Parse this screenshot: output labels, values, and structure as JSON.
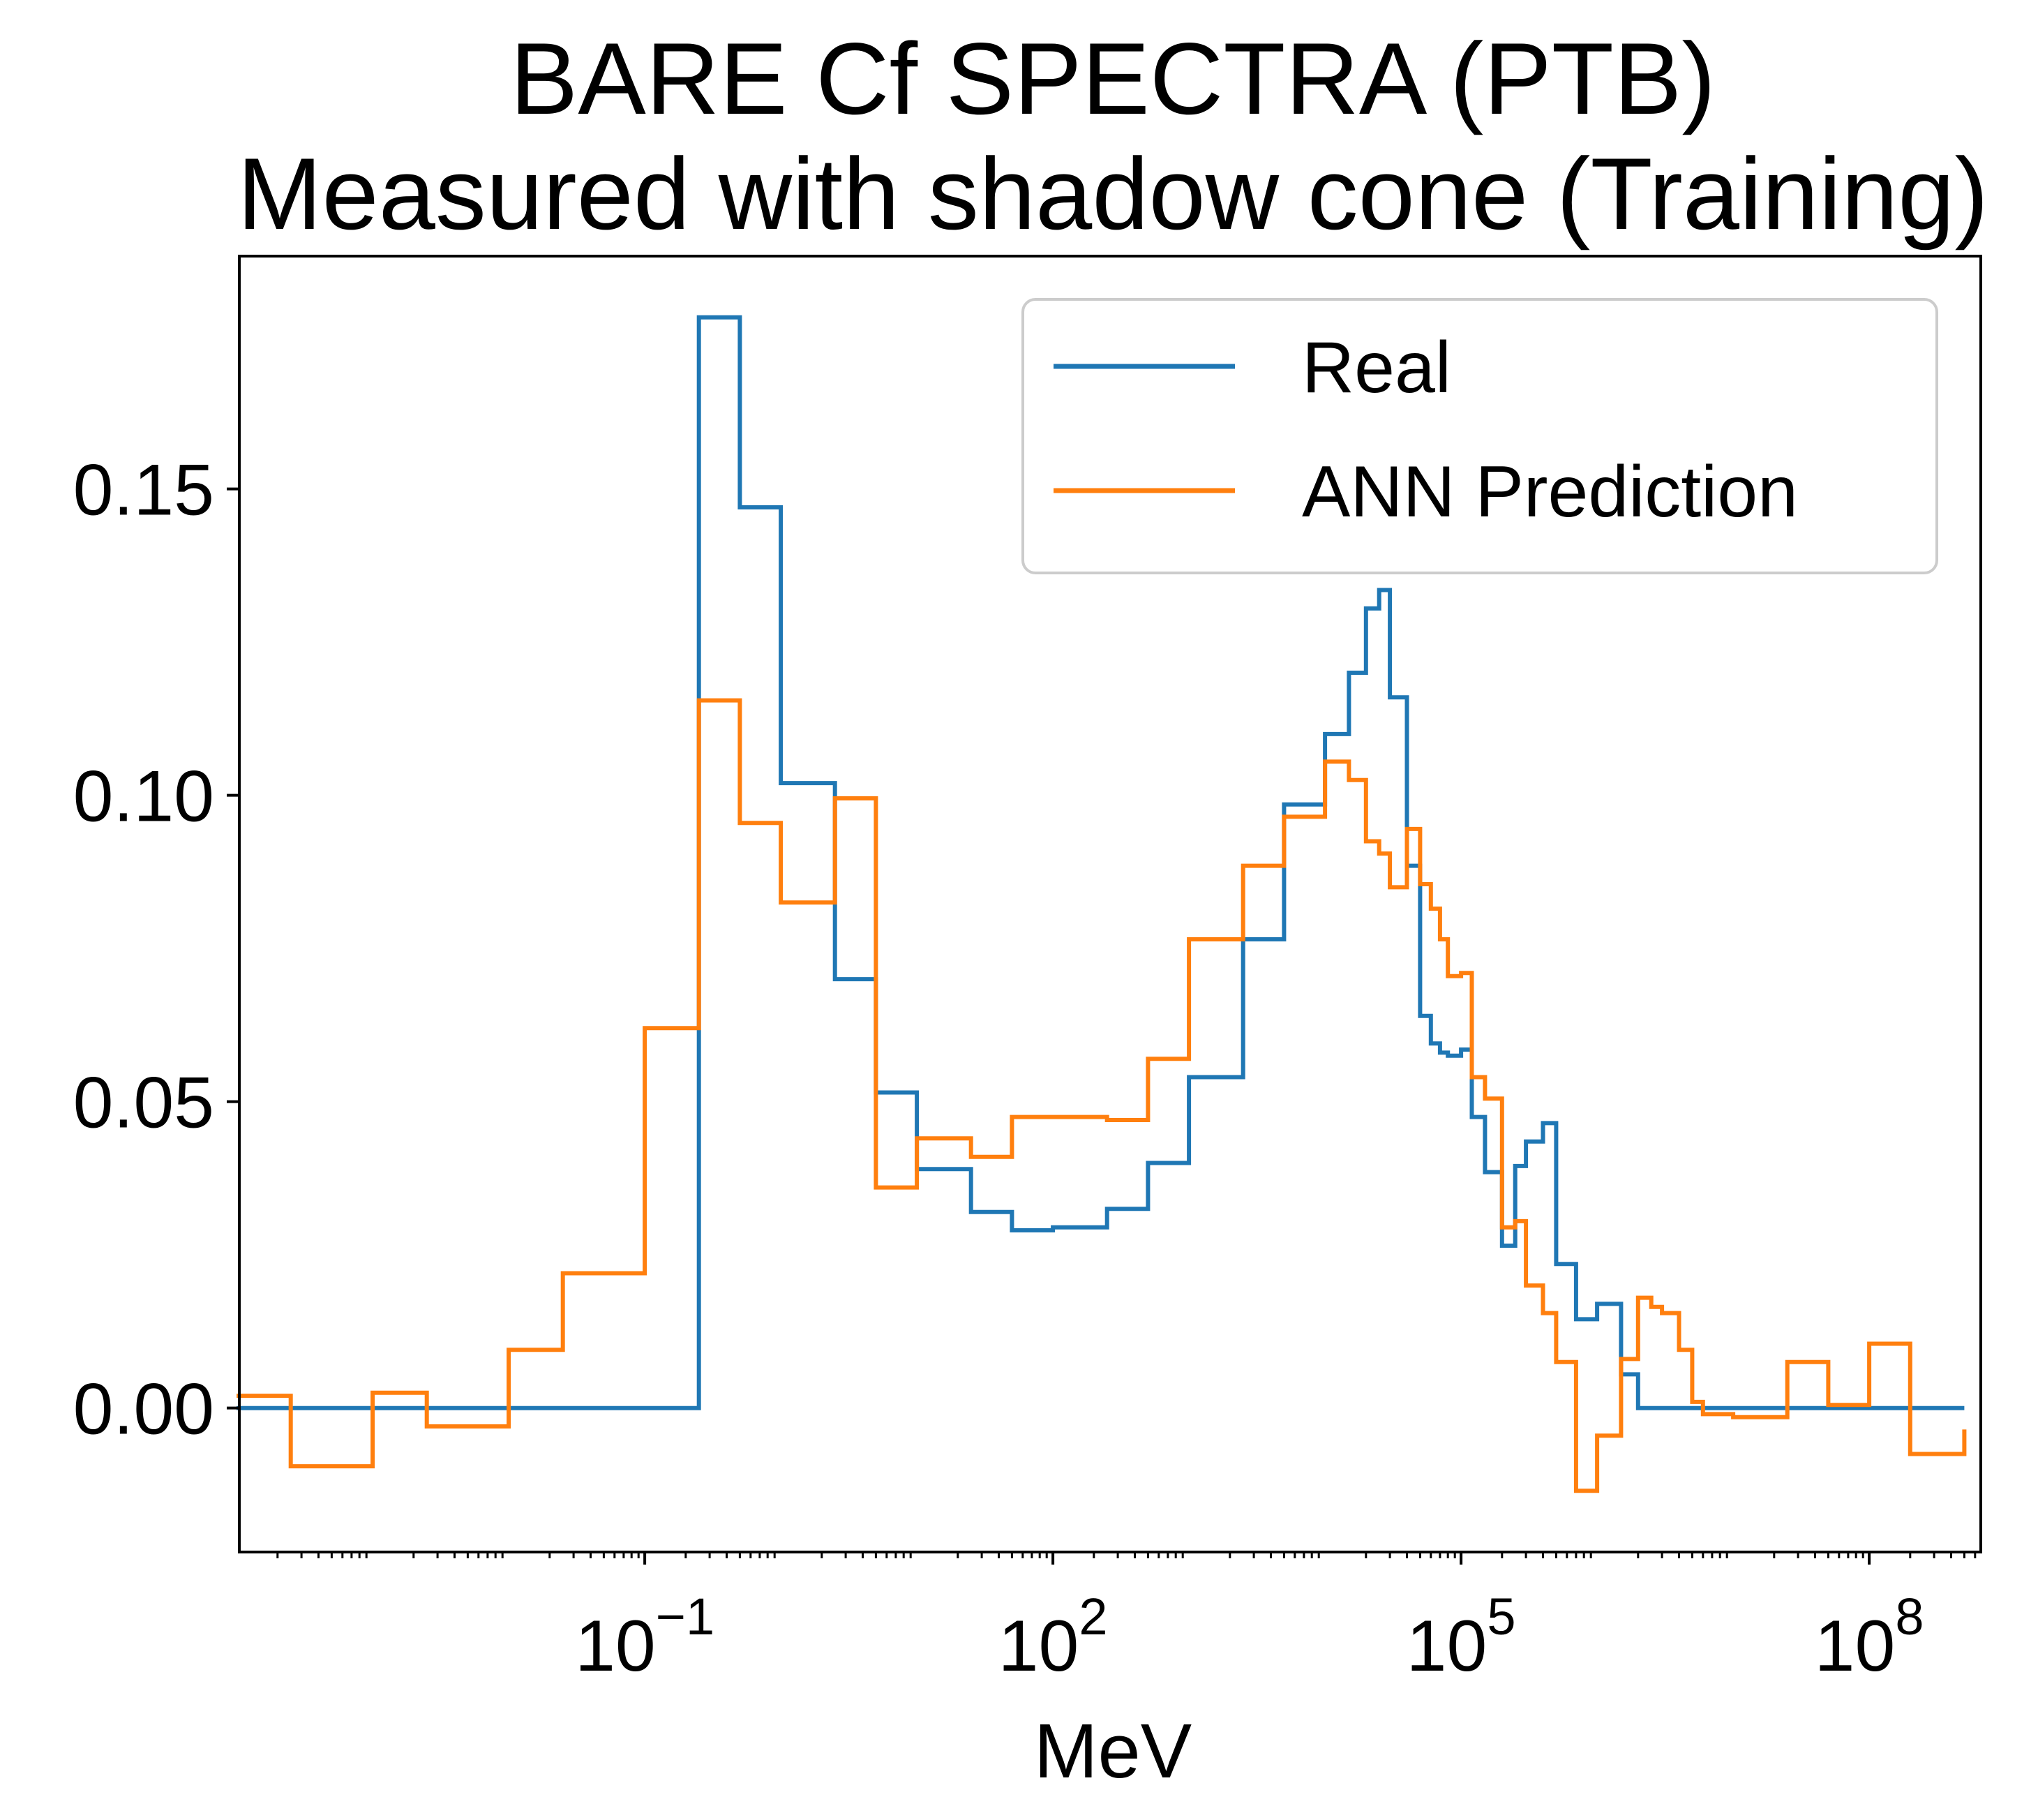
{
  "chart_data": {
    "type": "line",
    "step": "post",
    "title_line1": "BARE Cf SPECTRA (PTB)",
    "title_line2": "Measured with shadow cone (Training)",
    "xlabel": "MeV",
    "ylabel": "",
    "xscale": "log",
    "xlim_log10": [
      -3.98,
      8.82
    ],
    "ylim": [
      -0.0235,
      0.188
    ],
    "yticks": [
      0.0,
      0.05,
      0.1,
      0.15
    ],
    "ytick_labels": [
      "0.00",
      "0.05",
      "0.10",
      "0.15"
    ],
    "xticks_log10": [
      -1,
      2,
      5,
      8
    ],
    "xtick_labels": [
      {
        "base": "10",
        "exp": "−1"
      },
      {
        "base": "10",
        "exp": "2"
      },
      {
        "base": "10",
        "exp": "5"
      },
      {
        "base": "10",
        "exp": "8"
      }
    ],
    "grid": false,
    "legend_position": "upper right",
    "colors": {
      "real": "#1f77b4",
      "ann": "#ff7f0e",
      "frame": "#000000",
      "legend_border": "#cccccc"
    },
    "series": [
      {
        "name": "Real",
        "color": "#1f77b4",
        "x": [
          0.0001,
          0.00025,
          0.001,
          0.0025,
          0.01,
          0.025,
          0.1,
          0.25,
          0.5,
          1.0,
          2.5,
          5.0,
          10.0,
          25.0,
          50.0,
          100.0,
          250.0,
          500.0,
          1000.0,
          2500.0,
          5000.0,
          10000.0,
          15000.0,
          20000.0,
          25000.0,
          30000.0,
          40000.0,
          50000.0,
          60000.0,
          70000.0,
          80000.0,
          100000.0,
          120000.0,
          150000.0,
          200000.0,
          250000.0,
          300000.0,
          400000.0,
          500000.0,
          700000.0,
          1000000.0,
          1500000.0,
          2000000.0,
          2500000.0,
          3000000.0,
          4000000.0,
          5000000.0,
          6000000.0,
          10000000.0,
          25000000.0,
          50000000.0,
          100000000.0,
          200000000.0,
          500000000.0
        ],
        "y": [
          0.0,
          0.0,
          0.0,
          0.0,
          0.0,
          0.0,
          0.0,
          0.178,
          0.147,
          0.102,
          0.07,
          0.0515,
          0.039,
          0.032,
          0.029,
          0.0295,
          0.0325,
          0.04,
          0.054,
          0.0765,
          0.0985,
          0.11,
          0.12,
          0.1305,
          0.1335,
          0.116,
          0.0885,
          0.064,
          0.0595,
          0.058,
          0.0575,
          0.0585,
          0.0475,
          0.0385,
          0.0265,
          0.0395,
          0.0435,
          0.0465,
          0.0235,
          0.0145,
          0.017,
          0.0055,
          0.0,
          0.0,
          0.0,
          0.0,
          0.0,
          0.0,
          0.0,
          0.0,
          0.0,
          0.0,
          0.0,
          0.0
        ]
      },
      {
        "name": "ANN Prediction",
        "color": "#ff7f0e",
        "x": [
          0.0001,
          0.00025,
          0.001,
          0.0025,
          0.01,
          0.025,
          0.1,
          0.25,
          0.5,
          1.0,
          2.5,
          5.0,
          10.0,
          25.0,
          50.0,
          100.0,
          250.0,
          500.0,
          1000.0,
          2500.0,
          5000.0,
          10000.0,
          15000.0,
          20000.0,
          25000.0,
          30000.0,
          40000.0,
          50000.0,
          60000.0,
          70000.0,
          80000.0,
          100000.0,
          120000.0,
          150000.0,
          200000.0,
          250000.0,
          300000.0,
          400000.0,
          500000.0,
          700000.0,
          1000000.0,
          1500000.0,
          2000000.0,
          2500000.0,
          3000000.0,
          4000000.0,
          5000000.0,
          6000000.0,
          10000000.0,
          25000000.0,
          50000000.0,
          100000000.0,
          200000000.0,
          500000000.0
        ],
        "y": [
          0.002,
          -0.0095,
          0.0025,
          -0.003,
          0.0095,
          0.022,
          0.062,
          0.1155,
          0.0955,
          0.0825,
          0.0995,
          0.036,
          0.044,
          0.041,
          0.0475,
          0.0475,
          0.047,
          0.057,
          0.0765,
          0.0885,
          0.0965,
          0.1055,
          0.1025,
          0.0925,
          0.0905,
          0.085,
          0.0945,
          0.0855,
          0.0815,
          0.0765,
          0.0705,
          0.071,
          0.054,
          0.0505,
          0.0295,
          0.0305,
          0.02,
          0.0155,
          0.0075,
          -0.0135,
          -0.0045,
          0.008,
          0.018,
          0.0165,
          0.0155,
          0.0095,
          0.001,
          -0.001,
          -0.0015,
          0.0075,
          0.0005,
          0.0105,
          -0.0075,
          -0.0035
        ]
      }
    ]
  }
}
